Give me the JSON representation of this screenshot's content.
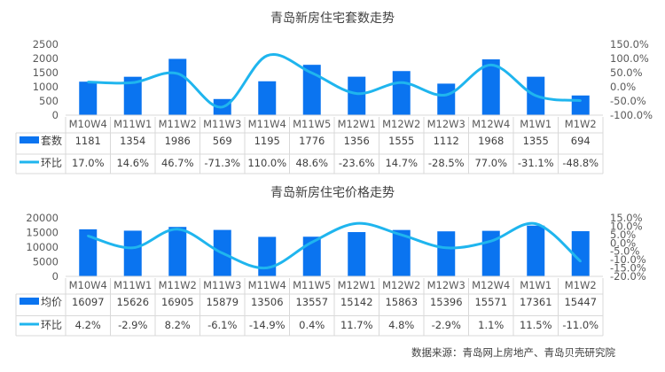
{
  "colors": {
    "bar": "#0A74F0",
    "line": "#1FB5EE",
    "axis_text": "#595959",
    "grid": "#D9D9D9",
    "title": "#404040"
  },
  "source_note": "数据来源：青岛网上房地产、青岛贝壳研究院",
  "chart_data": [
    {
      "type": "bar+line",
      "title": "青岛新房住宅套数走势",
      "categories": [
        "M10W4",
        "M11W1",
        "M11W2",
        "M11W3",
        "M11W4",
        "M11W5",
        "M12W1",
        "M12W2",
        "M12W3",
        "M12W4",
        "M1W1",
        "M1W2"
      ],
      "series": [
        {
          "name": "套数",
          "type": "bar",
          "axis": "left",
          "values": [
            1181,
            1354,
            1986,
            569,
            1195,
            1776,
            1356,
            1555,
            1112,
            1968,
            1355,
            694
          ],
          "labels": [
            "1181",
            "1354",
            "1986",
            "569",
            "1195",
            "1776",
            "1356",
            "1555",
            "1112",
            "1968",
            "1355",
            "694"
          ]
        },
        {
          "name": "环比",
          "type": "line",
          "axis": "right",
          "values": [
            17.0,
            14.6,
            46.7,
            -71.3,
            110.0,
            48.6,
            -23.6,
            14.7,
            -28.5,
            77.0,
            -31.1,
            -48.8
          ],
          "labels": [
            "17.0%",
            "14.6%",
            "46.7%",
            "-71.3%",
            "110.0%",
            "48.6%",
            "-23.6%",
            "14.7%",
            "-28.5%",
            "77.0%",
            "-31.1%",
            "-48.8%"
          ]
        }
      ],
      "ylim_left": [
        0,
        2500
      ],
      "yticks_left": [
        "2500",
        "2000",
        "1500",
        "1000",
        "500",
        "0"
      ],
      "ylim_right": [
        -100,
        150
      ],
      "yticks_right": [
        "150.0%",
        "100.0%",
        "50.0%",
        "0.0%",
        "-50.0%",
        "-100.0%"
      ]
    },
    {
      "type": "bar+line",
      "title": "青岛新房住宅价格走势",
      "categories": [
        "M10W4",
        "M11W1",
        "M11W2",
        "M11W3",
        "M11W4",
        "M11W5",
        "M12W1",
        "M12W2",
        "M12W3",
        "M12W4",
        "M1W1",
        "M1W2"
      ],
      "series": [
        {
          "name": "均价",
          "type": "bar",
          "axis": "left",
          "values": [
            16097,
            15626,
            16905,
            15879,
            13506,
            13557,
            15142,
            15863,
            15396,
            15571,
            17361,
            15447
          ],
          "labels": [
            "16097",
            "15626",
            "16905",
            "15879",
            "13506",
            "13557",
            "15142",
            "15863",
            "15396",
            "15571",
            "17361",
            "15447"
          ]
        },
        {
          "name": "环比",
          "type": "line",
          "axis": "right",
          "values": [
            4.2,
            -2.9,
            8.2,
            -6.1,
            -14.9,
            0.4,
            11.7,
            4.8,
            -2.9,
            1.1,
            11.5,
            -11.0
          ],
          "labels": [
            "4.2%",
            "-2.9%",
            "8.2%",
            "-6.1%",
            "-14.9%",
            "0.4%",
            "11.7%",
            "4.8%",
            "-2.9%",
            "1.1%",
            "11.5%",
            "-11.0%"
          ]
        }
      ],
      "ylim_left": [
        0,
        20000
      ],
      "yticks_left": [
        "20000",
        "15000",
        "10000",
        "5000",
        "0"
      ],
      "ylim_right": [
        -20,
        15
      ],
      "yticks_right": [
        "15.0%",
        "10.0%",
        "5.0%",
        "0.0%",
        "-5.0%",
        "-10.0%",
        "-15.0%",
        "-20.0%"
      ]
    }
  ]
}
